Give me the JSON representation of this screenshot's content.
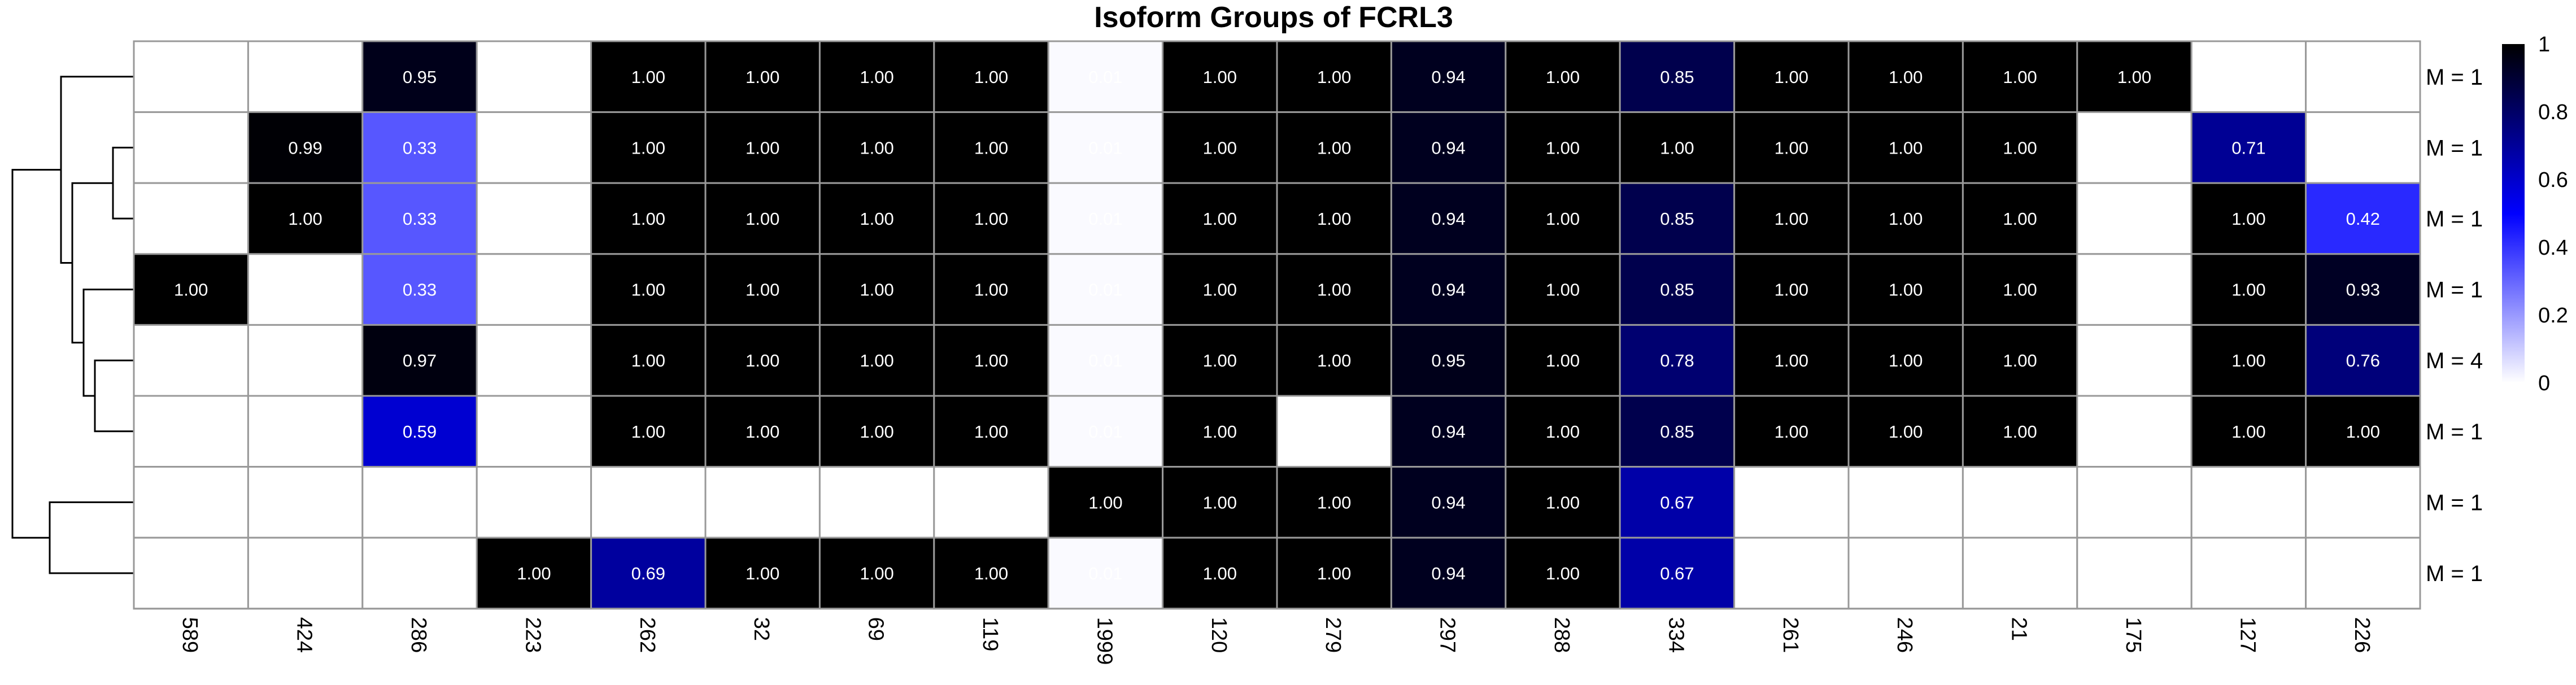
{
  "chart_data": {
    "type": "heatmap",
    "title": "Isoform Groups of FCRL3",
    "columns": [
      "589",
      "424",
      "286",
      "223",
      "262",
      "32",
      "69",
      "119",
      "1999",
      "120",
      "279",
      "297",
      "288",
      "334",
      "261",
      "246",
      "21",
      "175",
      "127",
      "226"
    ],
    "rows": [
      {
        "label": "M = 1",
        "values": [
          null,
          null,
          0.95,
          null,
          1.0,
          1.0,
          1.0,
          1.0,
          0.01,
          1.0,
          1.0,
          0.94,
          1.0,
          0.85,
          1.0,
          1.0,
          1.0,
          1.0,
          null,
          null
        ]
      },
      {
        "label": "M = 1",
        "values": [
          null,
          0.99,
          0.33,
          null,
          1.0,
          1.0,
          1.0,
          1.0,
          0.01,
          1.0,
          1.0,
          0.94,
          1.0,
          1.0,
          1.0,
          1.0,
          1.0,
          null,
          0.71,
          null
        ]
      },
      {
        "label": "M = 1",
        "values": [
          null,
          1.0,
          0.33,
          null,
          1.0,
          1.0,
          1.0,
          1.0,
          0.01,
          1.0,
          1.0,
          0.94,
          1.0,
          0.85,
          1.0,
          1.0,
          1.0,
          null,
          1.0,
          0.42
        ]
      },
      {
        "label": "M = 1",
        "values": [
          1.0,
          null,
          0.33,
          null,
          1.0,
          1.0,
          1.0,
          1.0,
          0.01,
          1.0,
          1.0,
          0.94,
          1.0,
          0.85,
          1.0,
          1.0,
          1.0,
          null,
          1.0,
          0.93
        ]
      },
      {
        "label": "M = 4",
        "values": [
          null,
          null,
          0.97,
          null,
          1.0,
          1.0,
          1.0,
          1.0,
          0.01,
          1.0,
          1.0,
          0.95,
          1.0,
          0.78,
          1.0,
          1.0,
          1.0,
          null,
          1.0,
          0.76
        ]
      },
      {
        "label": "M = 1",
        "values": [
          null,
          null,
          0.59,
          null,
          1.0,
          1.0,
          1.0,
          1.0,
          0.01,
          1.0,
          null,
          0.94,
          1.0,
          0.85,
          1.0,
          1.0,
          1.0,
          null,
          1.0,
          1.0
        ]
      },
      {
        "label": "M = 1",
        "values": [
          null,
          null,
          null,
          null,
          null,
          null,
          null,
          null,
          1.0,
          1.0,
          1.0,
          0.94,
          1.0,
          0.67,
          null,
          null,
          null,
          null,
          null,
          null
        ]
      },
      {
        "label": "M = 1",
        "values": [
          null,
          null,
          null,
          1.0,
          0.69,
          1.0,
          1.0,
          1.0,
          0.01,
          1.0,
          1.0,
          0.94,
          1.0,
          0.67,
          null,
          null,
          null,
          null,
          null,
          null
        ]
      }
    ],
    "color_scale": {
      "range": [
        0,
        1
      ],
      "ticks": [
        "0",
        "0.2",
        "0.4",
        "0.6",
        "0.8",
        "1"
      ],
      "colors": [
        "#ffffff",
        "#0000ff",
        "#000000"
      ]
    },
    "dendrogram": "left",
    "legend_position": "right",
    "grid": true
  }
}
